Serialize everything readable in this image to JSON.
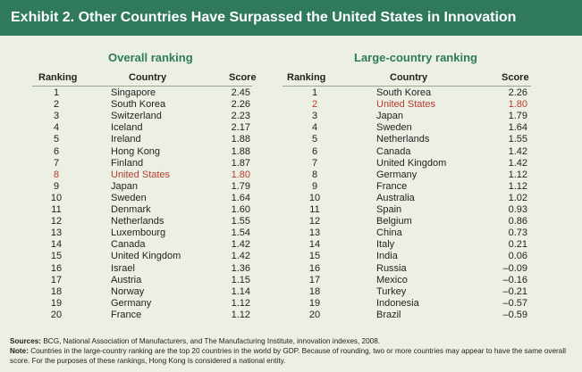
{
  "header": {
    "title": "Exhibit 2. Other Countries Have Surpassed the United States in Innovation"
  },
  "overall": {
    "title": "Overall ranking",
    "columns": [
      "Ranking",
      "Country",
      "Score"
    ],
    "rows": [
      {
        "rank": "1",
        "country": "Singapore",
        "score": "2.45",
        "highlight": false
      },
      {
        "rank": "2",
        "country": "South Korea",
        "score": "2.26",
        "highlight": false
      },
      {
        "rank": "3",
        "country": "Switzerland",
        "score": "2.23",
        "highlight": false
      },
      {
        "rank": "4",
        "country": "Iceland",
        "score": "2.17",
        "highlight": false
      },
      {
        "rank": "5",
        "country": "Ireland",
        "score": "1.88",
        "highlight": false
      },
      {
        "rank": "6",
        "country": "Hong Kong",
        "score": "1.88",
        "highlight": false
      },
      {
        "rank": "7",
        "country": "Finland",
        "score": "1.87",
        "highlight": false
      },
      {
        "rank": "8",
        "country": "United States",
        "score": "1.80",
        "highlight": true
      },
      {
        "rank": "9",
        "country": "Japan",
        "score": "1.79",
        "highlight": false
      },
      {
        "rank": "10",
        "country": "Sweden",
        "score": "1.64",
        "highlight": false
      },
      {
        "rank": "11",
        "country": "Denmark",
        "score": "1.60",
        "highlight": false
      },
      {
        "rank": "12",
        "country": "Netherlands",
        "score": "1.55",
        "highlight": false
      },
      {
        "rank": "13",
        "country": "Luxembourg",
        "score": "1.54",
        "highlight": false
      },
      {
        "rank": "14",
        "country": "Canada",
        "score": "1.42",
        "highlight": false
      },
      {
        "rank": "15",
        "country": "United Kingdom",
        "score": "1.42",
        "highlight": false
      },
      {
        "rank": "16",
        "country": "Israel",
        "score": "1.36",
        "highlight": false
      },
      {
        "rank": "17",
        "country": "Austria",
        "score": "1.15",
        "highlight": false
      },
      {
        "rank": "18",
        "country": "Norway",
        "score": "1.14",
        "highlight": false
      },
      {
        "rank": "19",
        "country": "Germany",
        "score": "1.12",
        "highlight": false
      },
      {
        "rank": "20",
        "country": "France",
        "score": "1.12",
        "highlight": false
      }
    ]
  },
  "large": {
    "title": "Large-country ranking",
    "columns": [
      "Ranking",
      "Country",
      "Score"
    ],
    "rows": [
      {
        "rank": "1",
        "country": "South Korea",
        "score": "2.26",
        "highlight": false
      },
      {
        "rank": "2",
        "country": "United States",
        "score": "1.80",
        "highlight": true
      },
      {
        "rank": "3",
        "country": "Japan",
        "score": "1.79",
        "highlight": false
      },
      {
        "rank": "4",
        "country": "Sweden",
        "score": "1.64",
        "highlight": false
      },
      {
        "rank": "5",
        "country": "Netherlands",
        "score": "1.55",
        "highlight": false
      },
      {
        "rank": "6",
        "country": "Canada",
        "score": "1.42",
        "highlight": false
      },
      {
        "rank": "7",
        "country": "United Kingdom",
        "score": "1.42",
        "highlight": false
      },
      {
        "rank": "8",
        "country": "Germany",
        "score": "1.12",
        "highlight": false
      },
      {
        "rank": "9",
        "country": "France",
        "score": "1.12",
        "highlight": false
      },
      {
        "rank": "10",
        "country": "Australia",
        "score": "1.02",
        "highlight": false
      },
      {
        "rank": "11",
        "country": "Spain",
        "score": "0.93",
        "highlight": false
      },
      {
        "rank": "12",
        "country": "Belgium",
        "score": "0.86",
        "highlight": false
      },
      {
        "rank": "13",
        "country": "China",
        "score": "0.73",
        "highlight": false
      },
      {
        "rank": "14",
        "country": "Italy",
        "score": "0.21",
        "highlight": false
      },
      {
        "rank": "15",
        "country": "India",
        "score": "0.06",
        "highlight": false
      },
      {
        "rank": "16",
        "country": "Russia",
        "score": "–0.09",
        "highlight": false
      },
      {
        "rank": "17",
        "country": "Mexico",
        "score": "–0.16",
        "highlight": false
      },
      {
        "rank": "18",
        "country": "Turkey",
        "score": "–0.21",
        "highlight": false
      },
      {
        "rank": "19",
        "country": "Indonesia",
        "score": "–0.57",
        "highlight": false
      },
      {
        "rank": "20",
        "country": "Brazil",
        "score": "–0.59",
        "highlight": false
      }
    ]
  },
  "footer": {
    "sources_label": "Sources:",
    "sources_text": "BCG, National Association of Manufacturers, and The Manufacturing Institute, innovation indexes, 2008.",
    "note_label": "Note:",
    "note_text": "Countries in the large-country ranking are the top 20 countries in the world by GDP. Because of rounding, two or more countries may appear to have the same overall score. For the purposes of these rankings, Hong Kong is considered a national entity."
  },
  "colors": {
    "header_bg": "#2f7a5c",
    "title_green": "#2f7a5c",
    "highlight_red": "#b83a2e",
    "panel_bg": "#ecf0e4"
  }
}
